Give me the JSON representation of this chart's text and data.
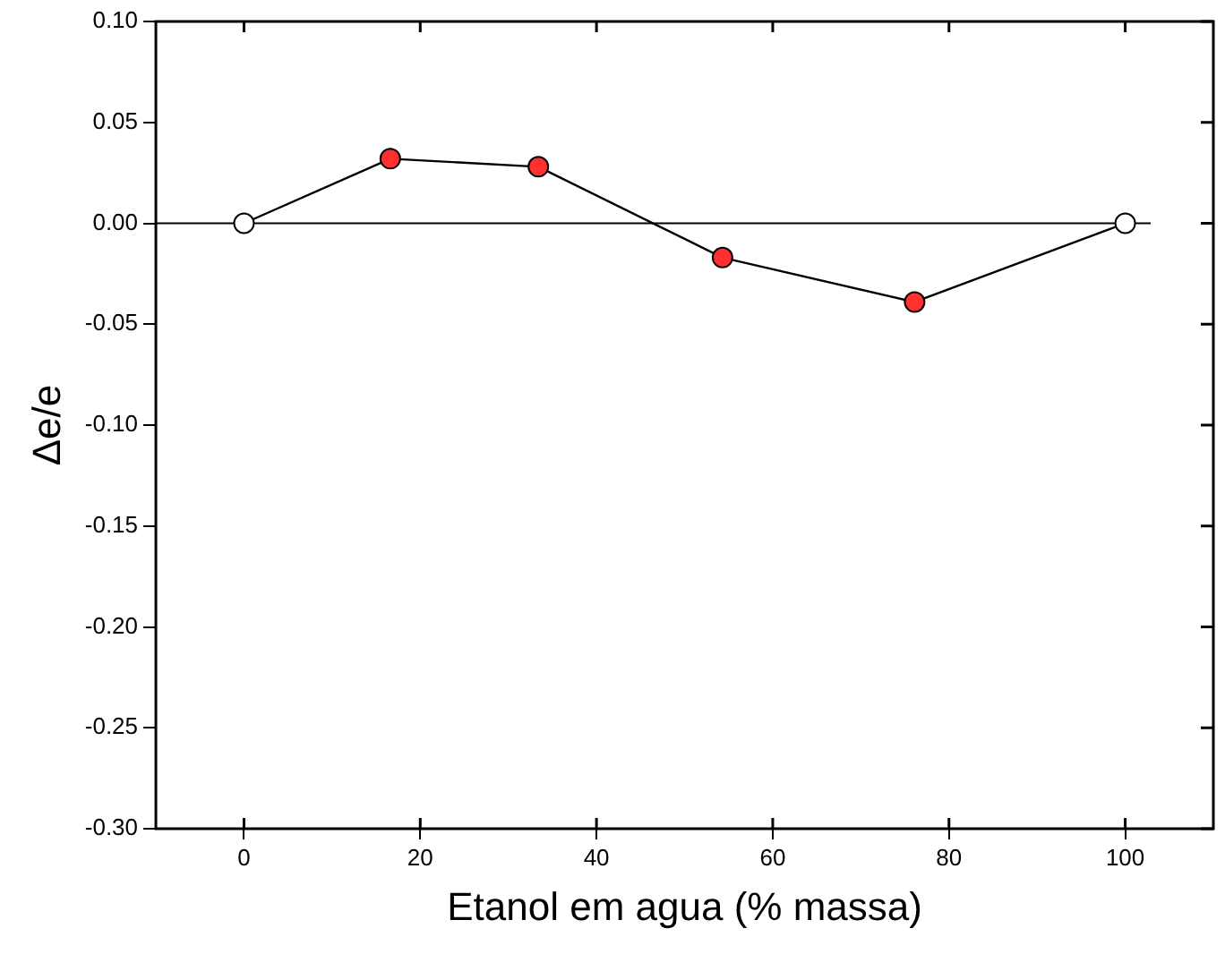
{
  "chart_data": {
    "type": "line",
    "xlabel": "Etanol em agua (% massa)",
    "ylabel": "Δe/e",
    "x": [
      0,
      16.6,
      33.4,
      54.3,
      76.1,
      100
    ],
    "series": [
      {
        "color": "#000000",
        "colors": [
          "#ffffff",
          "#ff3030",
          "#ff3030",
          "#ff3030",
          "#ff3030",
          "#ffffff"
        ],
        "values": [
          0,
          0.032,
          0.028,
          -0.017,
          -0.039,
          0
        ]
      }
    ],
    "xlim": [
      -10,
      110
    ],
    "xticks": [
      0,
      20,
      40,
      60,
      80,
      100
    ],
    "ylim": [
      -0.3,
      0.1
    ],
    "yticks": [
      {
        "value": -0.3,
        "label": "-0.30"
      },
      {
        "value": -0.25,
        "label": "-0.25"
      },
      {
        "value": -0.2,
        "label": "-0.20"
      },
      {
        "value": -0.15,
        "label": "-0.15"
      },
      {
        "value": -0.1,
        "label": "-0.10"
      },
      {
        "value": -0.05,
        "label": "-0.05"
      },
      {
        "value": 0,
        "label": "0.00"
      },
      {
        "value": 0.05,
        "label": "0.05"
      },
      {
        "value": 0.1,
        "label": "0.10"
      }
    ],
    "ref_lines": [
      {
        "axis": "y",
        "value": 0,
        "label": null,
        "color": "#000000"
      }
    ],
    "marker": "circle",
    "grid": false,
    "legend": false
  }
}
